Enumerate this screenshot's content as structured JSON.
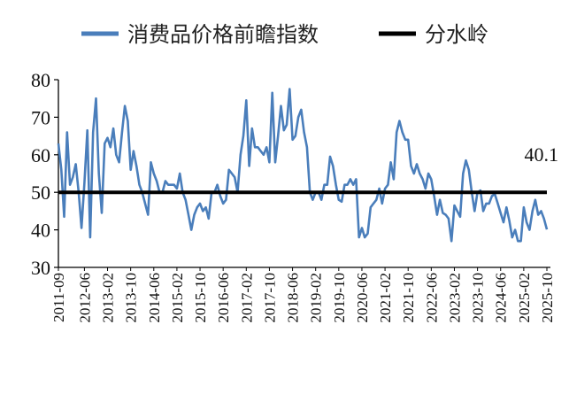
{
  "chart_data": {
    "type": "line",
    "title": "",
    "xlabel": "",
    "ylabel": "",
    "ylim": [
      30,
      80
    ],
    "yticks": [
      30,
      40,
      50,
      60,
      70,
      80
    ],
    "grid": false,
    "legend": "top-center",
    "x_start": "2011-09",
    "x_end": "2025-10",
    "xtick_labels": [
      "2011-09",
      "2012-06",
      "2013-02",
      "2013-10",
      "2014-06",
      "2015-02",
      "2015-10",
      "2016-06",
      "2017-02",
      "2017-10",
      "2018-06",
      "2019-02",
      "2019-10",
      "2020-06",
      "2021-02",
      "2021-10",
      "2022-06",
      "2023-02",
      "2023-10",
      "2024-06",
      "2025-02",
      "2025-10"
    ],
    "series": [
      {
        "name": "消费品价格前瞻指数",
        "color": "#4a7ebb",
        "values": [
          63,
          56,
          43.5,
          66,
          52,
          54,
          57.5,
          50,
          40.5,
          52.5,
          66.5,
          38,
          66,
          75,
          55,
          44.5,
          63,
          64.5,
          62,
          67,
          60,
          58,
          66,
          73,
          69,
          56,
          61,
          57,
          52,
          50,
          47,
          44,
          58,
          55,
          53,
          50,
          50,
          53,
          52,
          52,
          52,
          51,
          55,
          50,
          48,
          44,
          40,
          44,
          46,
          47,
          45,
          46,
          43,
          50,
          50,
          52,
          49,
          47,
          48,
          56,
          55,
          54,
          50,
          60,
          65,
          74.5,
          57,
          67,
          62,
          62,
          61,
          60,
          62,
          58,
          76.5,
          58,
          65,
          73,
          66.5,
          68,
          77.5,
          64,
          65,
          70,
          72,
          66,
          62,
          50,
          48,
          50,
          50,
          48,
          52,
          52,
          59.5,
          57,
          52,
          48,
          47.5,
          52,
          52,
          53.5,
          52,
          53.5,
          38,
          40.5,
          38,
          39,
          46,
          47,
          48,
          51,
          47,
          51,
          52,
          58,
          53.5,
          66,
          69,
          66,
          64,
          64,
          57,
          55,
          57.5,
          55,
          53.5,
          51,
          55,
          53.5,
          49,
          44,
          48,
          44.5,
          44,
          43,
          37,
          46.5,
          45,
          43.5,
          55,
          58.5,
          56,
          50,
          45,
          50,
          50.5,
          45,
          47,
          47,
          49,
          49.5,
          47,
          44.5,
          42,
          46,
          42.5,
          38,
          40,
          37,
          37,
          46,
          42,
          40,
          45,
          48,
          44,
          45,
          43,
          40.1
        ]
      },
      {
        "name": "分水岭",
        "color": "#000000",
        "values": [
          50,
          50
        ]
      }
    ],
    "annotations": [
      {
        "text": "40.1",
        "x": "2025-10",
        "y": 40.1
      }
    ]
  }
}
